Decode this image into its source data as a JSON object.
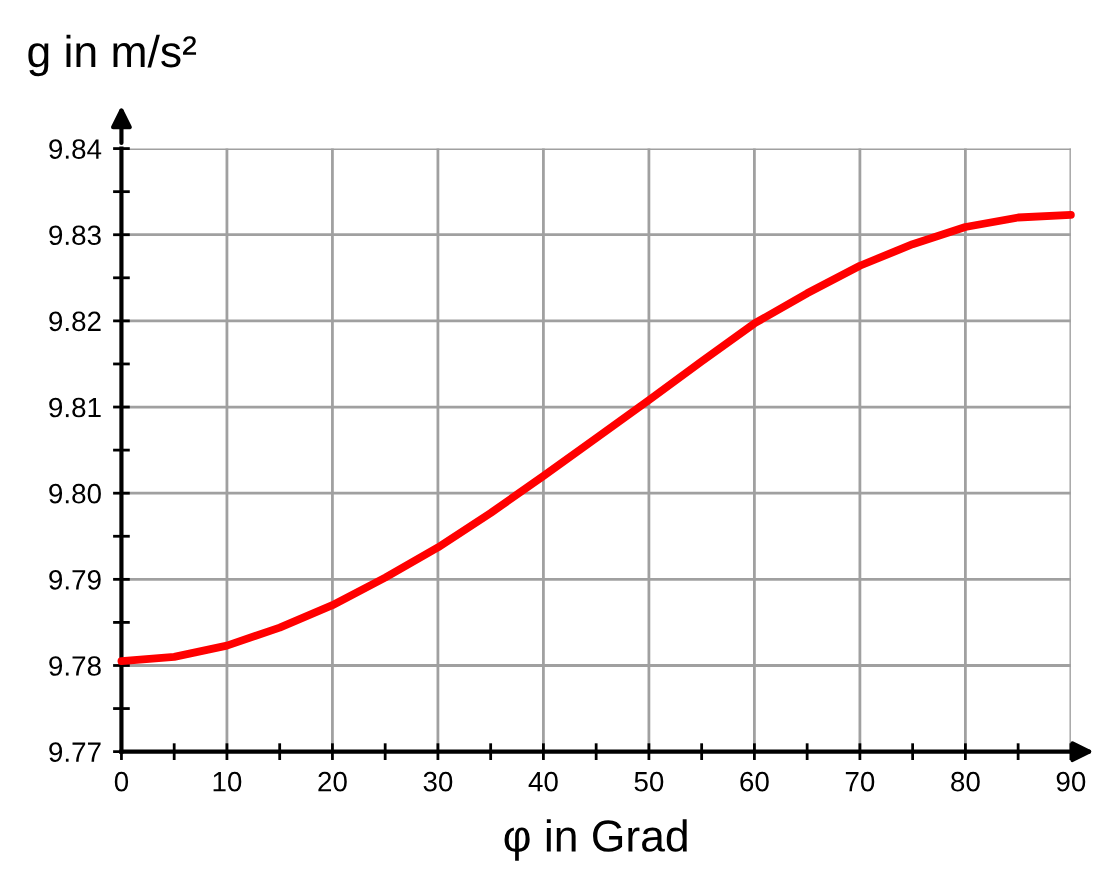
{
  "chart_data": {
    "type": "line",
    "xlabel": "φ in Grad",
    "ylabel": "g in m/s²",
    "x": [
      0,
      5,
      10,
      15,
      20,
      25,
      30,
      35,
      40,
      45,
      50,
      55,
      60,
      65,
      70,
      75,
      80,
      85,
      90
    ],
    "series": [
      {
        "color": "#ff0000",
        "values": [
          9.7805,
          9.781,
          9.7823,
          9.7844,
          9.787,
          9.7902,
          9.7937,
          9.7977,
          9.802,
          9.8064,
          9.8108,
          9.8153,
          9.8197,
          9.8232,
          9.8264,
          9.8289,
          9.8309,
          9.832,
          9.8323
        ]
      }
    ],
    "xlim": [
      0,
      90
    ],
    "ylim": [
      9.77,
      9.84
    ],
    "xticks": [
      0,
      {
        "value": 5,
        "label": null
      },
      10,
      {
        "value": 15,
        "label": null
      },
      20,
      {
        "value": 25,
        "label": null
      },
      30,
      {
        "value": 35,
        "label": null
      },
      40,
      {
        "value": 45,
        "label": null
      },
      50,
      {
        "value": 55,
        "label": null
      },
      60,
      {
        "value": 65,
        "label": null
      },
      70,
      {
        "value": 75,
        "label": null
      },
      80,
      {
        "value": 85,
        "label": null
      },
      90
    ],
    "yticks": [
      {
        "value": 9.77,
        "label": "9.77"
      },
      {
        "value": 9.775,
        "label": null
      },
      {
        "value": 9.78,
        "label": "9.78"
      },
      {
        "value": 9.785,
        "label": null
      },
      {
        "value": 9.79,
        "label": "9.79"
      },
      {
        "value": 9.795,
        "label": null
      },
      {
        "value": 9.8,
        "label": "9.80"
      },
      {
        "value": 9.805,
        "label": null
      },
      {
        "value": 9.81,
        "label": "9.81"
      },
      {
        "value": 9.815,
        "label": null
      },
      {
        "value": 9.82,
        "label": "9.82"
      },
      {
        "value": 9.825,
        "label": null
      },
      {
        "value": 9.83,
        "label": "9.83"
      },
      {
        "value": 9.835,
        "label": null
      },
      {
        "value": 9.84,
        "label": "9.84"
      }
    ],
    "grid": true,
    "line_style": "solid",
    "marker": "none"
  }
}
